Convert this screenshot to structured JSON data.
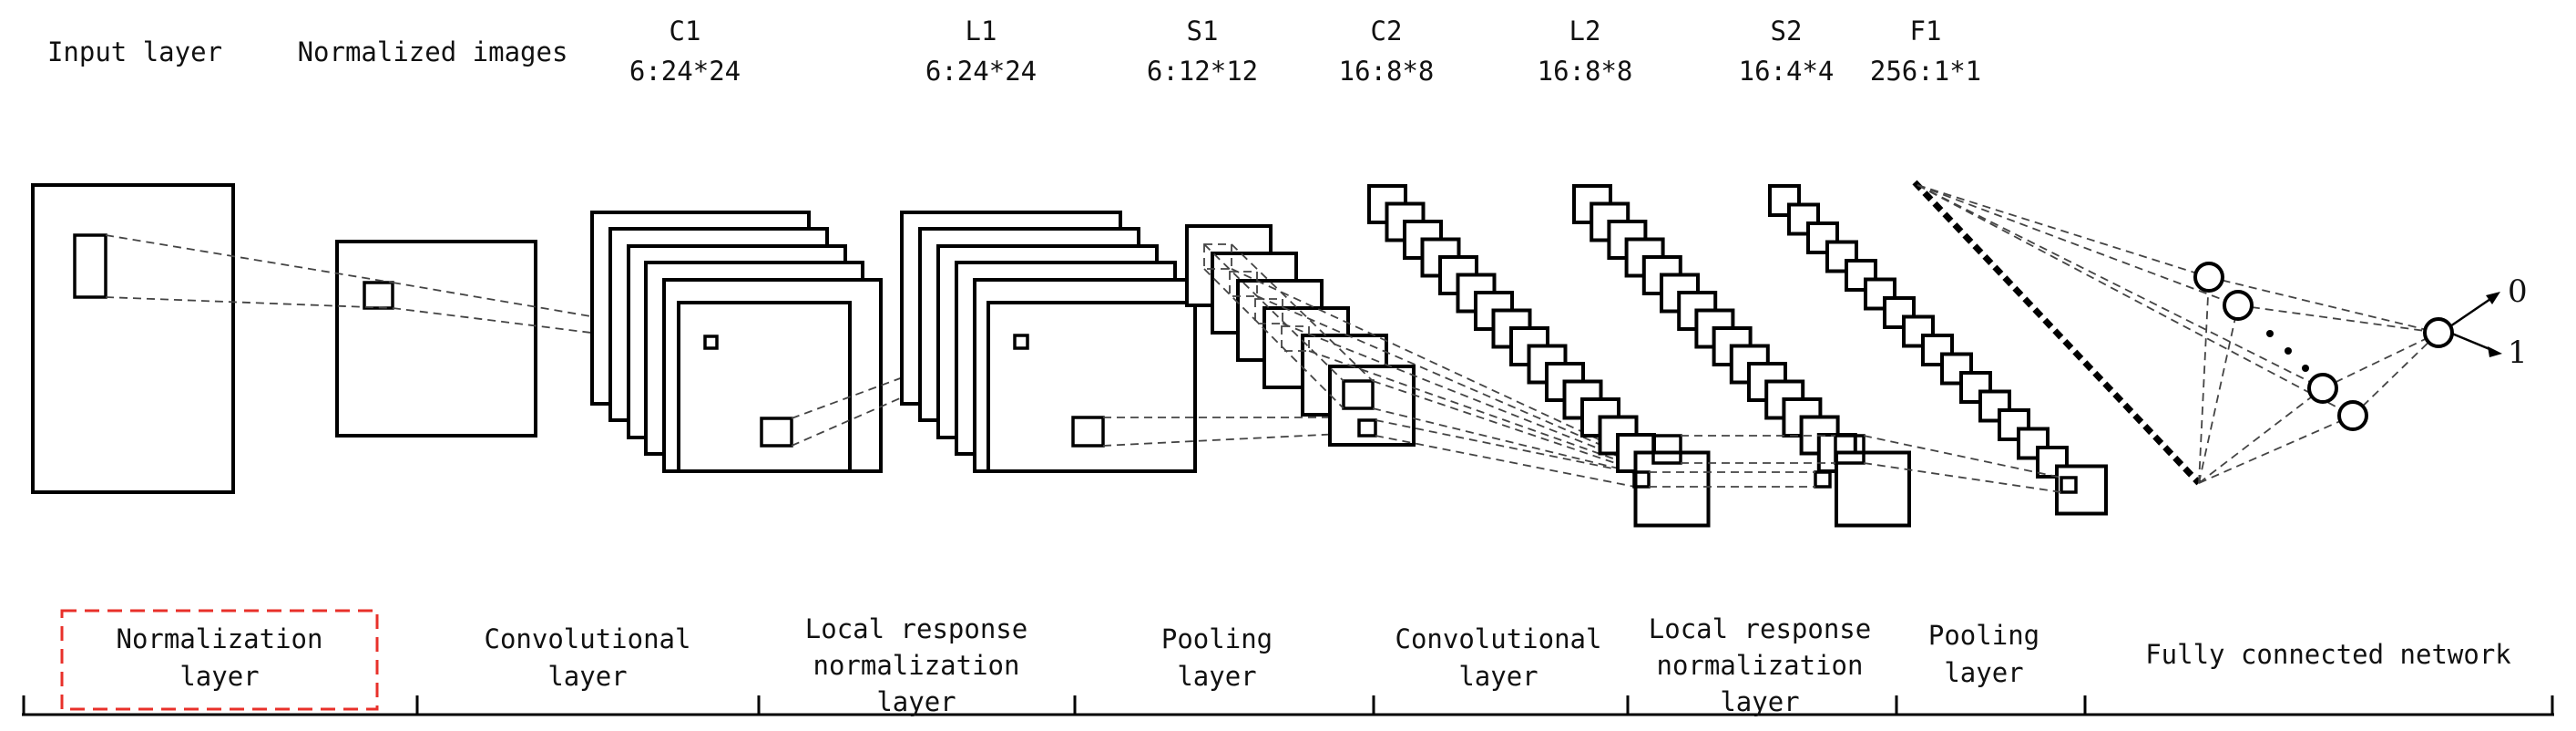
{
  "layer_labels": {
    "input": "Input layer",
    "normalized": "Normalized images",
    "c1": {
      "name": "C1",
      "dims": "6:24*24"
    },
    "l1": {
      "name": "L1",
      "dims": "6:24*24"
    },
    "s1": {
      "name": "S1",
      "dims": "6:12*12"
    },
    "c2": {
      "name": "C2",
      "dims": "16:8*8"
    },
    "l2": {
      "name": "L2",
      "dims": "16:8*8"
    },
    "s2": {
      "name": "S2",
      "dims": "16:4*4"
    },
    "f1": {
      "name": "F1",
      "dims": "256:1*1"
    }
  },
  "outputs": {
    "zero": "0",
    "one": "1"
  },
  "sections": [
    {
      "line1": "Normalization",
      "line2": "layer"
    },
    {
      "line1": "Convolutional",
      "line2": "layer"
    },
    {
      "line1": "Local response",
      "line2": "normalization",
      "line3": "layer"
    },
    {
      "line1": "Pooling",
      "line2": "layer"
    },
    {
      "line1": "Convolutional",
      "line2": "layer"
    },
    {
      "line1": "Local response",
      "line2": "normalization",
      "line3": "layer"
    },
    {
      "line1": "Pooling",
      "line2": "layer"
    },
    {
      "line1": "Fully connected network"
    }
  ],
  "colors": {
    "ink": "#000000",
    "highlight": "#e8302a",
    "dash": "#444444"
  }
}
